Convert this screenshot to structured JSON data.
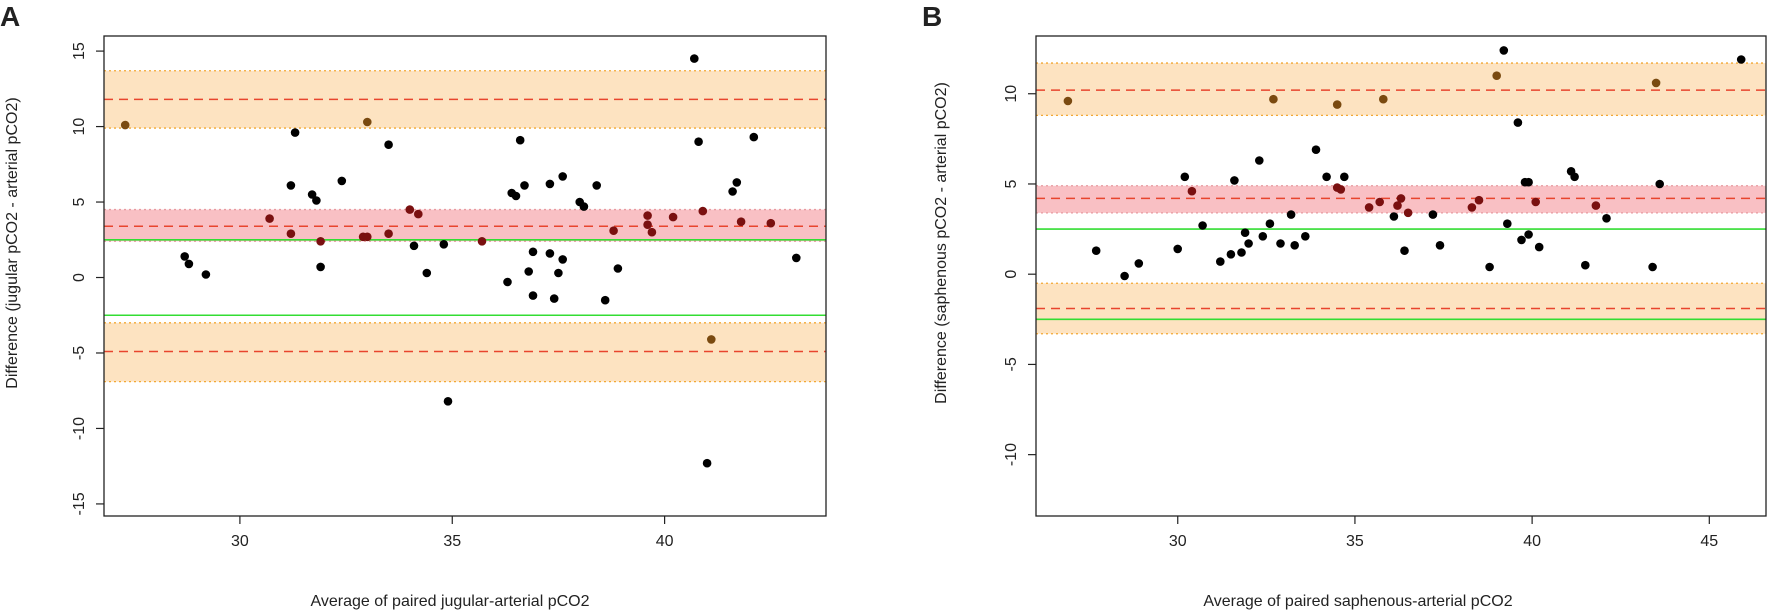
{
  "colors": {
    "outer_band": "#fde3c1",
    "outer_band_edge": "#f2a833",
    "mean_band": "#f9c0c4",
    "mean_band_edge": "#e89aa0",
    "dashed_line": "#e8452e",
    "threshold_line": "#33dd33",
    "point_default": "#000000",
    "point_in_mean_band": "#7a1010",
    "point_in_outer_band": "#7a4a10"
  },
  "chart_data": [
    {
      "type": "scatter",
      "panel": "A",
      "title": "",
      "xlabel": "Average of paired jugular-arterial pCO2",
      "ylabel": "Difference (jugular pCO2 - arterial pCO2)",
      "xlim": [
        26.8,
        43.8
      ],
      "ylim": [
        -15.8,
        16
      ],
      "xticks": [
        30,
        35,
        40
      ],
      "yticks": [
        -15,
        -10,
        -5,
        0,
        5,
        10,
        15
      ],
      "bias": {
        "value": 3.4,
        "ci": [
          2.4,
          4.5
        ]
      },
      "upper_loa": {
        "value": 11.8,
        "ci": [
          9.9,
          13.7
        ]
      },
      "lower_loa": {
        "value": -4.9,
        "ci": [
          -6.9,
          -3.0
        ]
      },
      "reference_lines": [
        2.5,
        -2.5
      ],
      "points": [
        [
          27.3,
          10.1
        ],
        [
          28.7,
          1.4
        ],
        [
          28.8,
          0.9
        ],
        [
          29.2,
          0.2
        ],
        [
          30.7,
          3.9
        ],
        [
          31.2,
          6.1
        ],
        [
          31.2,
          2.9
        ],
        [
          31.3,
          9.6
        ],
        [
          31.7,
          5.5
        ],
        [
          31.8,
          5.1
        ],
        [
          31.9,
          2.4
        ],
        [
          31.9,
          0.7
        ],
        [
          32.4,
          6.4
        ],
        [
          32.9,
          2.7
        ],
        [
          33.0,
          10.3
        ],
        [
          33.0,
          2.7
        ],
        [
          33.5,
          8.8
        ],
        [
          33.5,
          2.9
        ],
        [
          34.0,
          4.5
        ],
        [
          34.1,
          2.1
        ],
        [
          34.2,
          4.2
        ],
        [
          34.4,
          0.3
        ],
        [
          34.8,
          2.2
        ],
        [
          34.9,
          -8.2
        ],
        [
          35.7,
          2.4
        ],
        [
          36.3,
          -0.3
        ],
        [
          36.4,
          5.6
        ],
        [
          36.5,
          5.4
        ],
        [
          36.6,
          9.1
        ],
        [
          36.7,
          6.1
        ],
        [
          36.8,
          0.4
        ],
        [
          36.9,
          1.7
        ],
        [
          36.9,
          -1.2
        ],
        [
          37.3,
          6.2
        ],
        [
          37.3,
          1.6
        ],
        [
          37.4,
          -1.4
        ],
        [
          37.5,
          0.3
        ],
        [
          37.6,
          1.2
        ],
        [
          37.6,
          6.7
        ],
        [
          38.0,
          5.0
        ],
        [
          38.1,
          4.7
        ],
        [
          38.4,
          6.1
        ],
        [
          38.6,
          -1.5
        ],
        [
          38.8,
          3.1
        ],
        [
          38.9,
          0.6
        ],
        [
          39.6,
          4.1
        ],
        [
          39.6,
          3.5
        ],
        [
          39.7,
          3.0
        ],
        [
          40.2,
          4.0
        ],
        [
          40.7,
          14.5
        ],
        [
          40.8,
          9.0
        ],
        [
          40.9,
          4.4
        ],
        [
          41.0,
          -12.3
        ],
        [
          41.1,
          -4.1
        ],
        [
          41.6,
          5.7
        ],
        [
          41.7,
          6.3
        ],
        [
          41.8,
          3.7
        ],
        [
          42.1,
          9.3
        ],
        [
          42.5,
          3.6
        ],
        [
          43.1,
          1.3
        ]
      ]
    },
    {
      "type": "scatter",
      "panel": "B",
      "title": "",
      "xlabel": "Average of paired saphenous-arterial pCO2",
      "ylabel": "Difference (saphenous pCO2 - arterial pCO2)",
      "xlim": [
        26.0,
        46.6
      ],
      "ylim": [
        -13.4,
        13.2
      ],
      "xticks": [
        30,
        35,
        40,
        45
      ],
      "yticks": [
        -10,
        -5,
        0,
        5,
        10
      ],
      "bias": {
        "value": 4.2,
        "ci": [
          3.4,
          4.9
        ]
      },
      "upper_loa": {
        "value": 10.2,
        "ci": [
          8.8,
          11.7
        ]
      },
      "lower_loa": {
        "value": -1.9,
        "ci": [
          -3.3,
          -0.5
        ]
      },
      "reference_lines": [
        2.5,
        -2.5
      ],
      "points": [
        [
          26.9,
          9.6
        ],
        [
          27.7,
          1.3
        ],
        [
          28.5,
          -0.1
        ],
        [
          28.9,
          0.6
        ],
        [
          30.0,
          1.4
        ],
        [
          30.2,
          5.4
        ],
        [
          30.4,
          4.6
        ],
        [
          30.7,
          2.7
        ],
        [
          31.2,
          0.7
        ],
        [
          31.5,
          1.1
        ],
        [
          31.6,
          5.2
        ],
        [
          31.8,
          1.2
        ],
        [
          31.9,
          2.3
        ],
        [
          32.0,
          1.7
        ],
        [
          32.3,
          6.3
        ],
        [
          32.4,
          2.1
        ],
        [
          32.6,
          2.8
        ],
        [
          32.7,
          9.7
        ],
        [
          32.9,
          1.7
        ],
        [
          33.2,
          3.3
        ],
        [
          33.3,
          1.6
        ],
        [
          33.6,
          2.1
        ],
        [
          33.9,
          6.9
        ],
        [
          34.2,
          5.4
        ],
        [
          34.5,
          4.8
        ],
        [
          34.5,
          9.4
        ],
        [
          34.6,
          4.7
        ],
        [
          34.7,
          5.4
        ],
        [
          35.4,
          3.7
        ],
        [
          35.7,
          4.0
        ],
        [
          35.8,
          9.7
        ],
        [
          36.1,
          3.2
        ],
        [
          36.2,
          3.8
        ],
        [
          36.3,
          4.2
        ],
        [
          36.4,
          1.3
        ],
        [
          36.5,
          3.4
        ],
        [
          37.2,
          3.3
        ],
        [
          37.4,
          1.6
        ],
        [
          38.3,
          3.7
        ],
        [
          38.5,
          4.1
        ],
        [
          38.8,
          0.4
        ],
        [
          39.0,
          11.0
        ],
        [
          39.2,
          12.4
        ],
        [
          39.3,
          2.8
        ],
        [
          39.6,
          8.4
        ],
        [
          39.7,
          1.9
        ],
        [
          39.8,
          5.1
        ],
        [
          39.9,
          2.2
        ],
        [
          39.9,
          5.1
        ],
        [
          40.1,
          4.0
        ],
        [
          40.2,
          1.5
        ],
        [
          41.1,
          5.7
        ],
        [
          41.2,
          5.4
        ],
        [
          41.5,
          0.5
        ],
        [
          41.8,
          3.8
        ],
        [
          42.1,
          3.1
        ],
        [
          43.4,
          0.4
        ],
        [
          43.5,
          10.6
        ],
        [
          43.6,
          5.0
        ],
        [
          45.9,
          11.9
        ]
      ]
    }
  ]
}
